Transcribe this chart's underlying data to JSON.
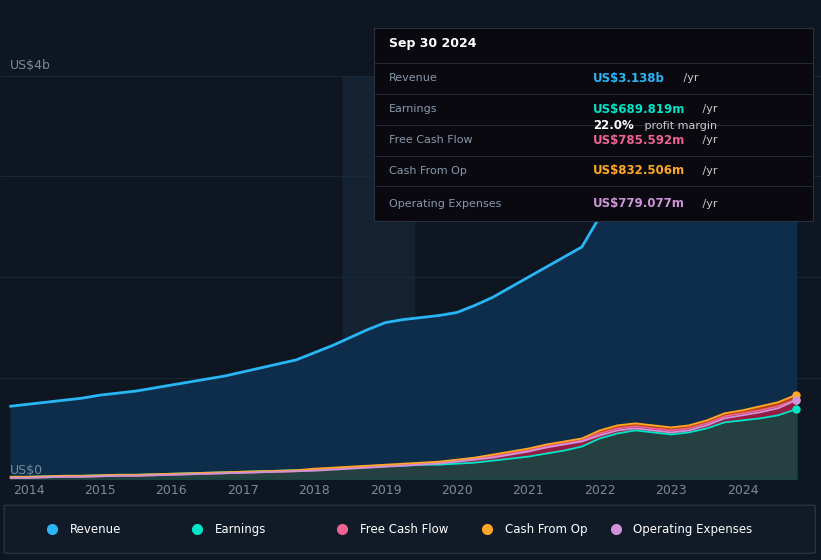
{
  "background_color": "#0e1621",
  "chart_bg_color": "#0e1621",
  "grid_color": "#1c2b3a",
  "title_box": {
    "date": "Sep 30 2024",
    "rows": [
      {
        "label": "Revenue",
        "value": "US$3.138b",
        "value_color": "#29b6f6",
        "suffix": " /yr",
        "bold_val": false
      },
      {
        "label": "Earnings",
        "value": "US$689.819m",
        "value_color": "#00e5c8",
        "suffix": " /yr",
        "bold_val": false
      },
      {
        "label": "",
        "value": "22.0%",
        "value_color": "#ffffff",
        "suffix": " profit margin",
        "bold_val": true
      },
      {
        "label": "Free Cash Flow",
        "value": "US$785.592m",
        "value_color": "#f06292",
        "suffix": " /yr",
        "bold_val": false
      },
      {
        "label": "Cash From Op",
        "value": "US$832.506m",
        "value_color": "#ffa726",
        "suffix": " /yr",
        "bold_val": false
      },
      {
        "label": "Operating Expenses",
        "value": "US$779.077m",
        "value_color": "#ce93d8",
        "suffix": " /yr",
        "bold_val": false
      }
    ]
  },
  "years": [
    2013.75,
    2014.0,
    2014.25,
    2014.5,
    2014.75,
    2015.0,
    2015.25,
    2015.5,
    2015.75,
    2016.0,
    2016.25,
    2016.5,
    2016.75,
    2017.0,
    2017.25,
    2017.5,
    2017.75,
    2018.0,
    2018.25,
    2018.5,
    2018.75,
    2019.0,
    2019.25,
    2019.5,
    2019.75,
    2020.0,
    2020.25,
    2020.5,
    2020.75,
    2021.0,
    2021.25,
    2021.5,
    2021.75,
    2022.0,
    2022.25,
    2022.5,
    2022.75,
    2023.0,
    2023.25,
    2023.5,
    2023.75,
    2024.0,
    2024.25,
    2024.5,
    2024.75
  ],
  "revenue": [
    0.72,
    0.74,
    0.76,
    0.78,
    0.8,
    0.83,
    0.85,
    0.87,
    0.9,
    0.93,
    0.96,
    0.99,
    1.02,
    1.06,
    1.1,
    1.14,
    1.18,
    1.25,
    1.32,
    1.4,
    1.48,
    1.55,
    1.58,
    1.6,
    1.62,
    1.65,
    1.72,
    1.8,
    1.9,
    2.0,
    2.1,
    2.2,
    2.3,
    2.6,
    2.75,
    2.8,
    2.75,
    2.72,
    2.75,
    2.85,
    2.95,
    3.0,
    3.05,
    3.1,
    3.138
  ],
  "earnings": [
    0.02,
    0.02,
    0.025,
    0.03,
    0.03,
    0.035,
    0.04,
    0.04,
    0.045,
    0.05,
    0.055,
    0.06,
    0.065,
    0.07,
    0.075,
    0.08,
    0.085,
    0.09,
    0.1,
    0.11,
    0.12,
    0.13,
    0.13,
    0.14,
    0.14,
    0.15,
    0.16,
    0.18,
    0.2,
    0.22,
    0.25,
    0.28,
    0.32,
    0.4,
    0.45,
    0.48,
    0.46,
    0.44,
    0.46,
    0.5,
    0.56,
    0.58,
    0.6,
    0.63,
    0.6898
  ],
  "free_cash_flow": [
    0.01,
    0.01,
    0.015,
    0.02,
    0.02,
    0.025,
    0.03,
    0.03,
    0.035,
    0.04,
    0.045,
    0.05,
    0.055,
    0.06,
    0.065,
    0.07,
    0.075,
    0.09,
    0.1,
    0.11,
    0.12,
    0.13,
    0.14,
    0.15,
    0.16,
    0.18,
    0.2,
    0.22,
    0.25,
    0.28,
    0.32,
    0.35,
    0.38,
    0.45,
    0.5,
    0.52,
    0.5,
    0.48,
    0.5,
    0.55,
    0.62,
    0.65,
    0.68,
    0.72,
    0.7856
  ],
  "cash_from_op": [
    0.02,
    0.02,
    0.025,
    0.03,
    0.03,
    0.035,
    0.04,
    0.04,
    0.045,
    0.05,
    0.055,
    0.06,
    0.065,
    0.07,
    0.075,
    0.08,
    0.085,
    0.1,
    0.11,
    0.12,
    0.13,
    0.14,
    0.15,
    0.16,
    0.17,
    0.19,
    0.21,
    0.24,
    0.27,
    0.3,
    0.34,
    0.37,
    0.4,
    0.48,
    0.53,
    0.55,
    0.53,
    0.51,
    0.53,
    0.58,
    0.65,
    0.68,
    0.72,
    0.76,
    0.8325
  ],
  "op_expenses": [
    0.01,
    0.01,
    0.015,
    0.02,
    0.02,
    0.025,
    0.03,
    0.03,
    0.035,
    0.04,
    0.045,
    0.05,
    0.055,
    0.06,
    0.065,
    0.07,
    0.075,
    0.08,
    0.09,
    0.1,
    0.11,
    0.12,
    0.13,
    0.14,
    0.15,
    0.17,
    0.19,
    0.21,
    0.24,
    0.27,
    0.31,
    0.34,
    0.37,
    0.43,
    0.48,
    0.5,
    0.48,
    0.46,
    0.48,
    0.53,
    0.6,
    0.63,
    0.66,
    0.7,
    0.779
  ],
  "revenue_color": "#29b6f6",
  "earnings_color": "#00e5c8",
  "fcf_color": "#f06292",
  "cashop_color": "#ffa726",
  "opex_color": "#ce93d8",
  "ylabel": "US$4b",
  "y0label": "US$0",
  "ylim": [
    0,
    4.0
  ],
  "xlim_start": 2013.6,
  "xlim_end": 2025.1,
  "xticks": [
    2014,
    2015,
    2016,
    2017,
    2018,
    2019,
    2020,
    2021,
    2022,
    2023,
    2024
  ],
  "legend_items": [
    {
      "label": "Revenue",
      "color": "#29b6f6"
    },
    {
      "label": "Earnings",
      "color": "#00e5c8"
    },
    {
      "label": "Free Cash Flow",
      "color": "#f06292"
    },
    {
      "label": "Cash From Op",
      "color": "#ffa726"
    },
    {
      "label": "Operating Expenses",
      "color": "#ce93d8"
    }
  ]
}
